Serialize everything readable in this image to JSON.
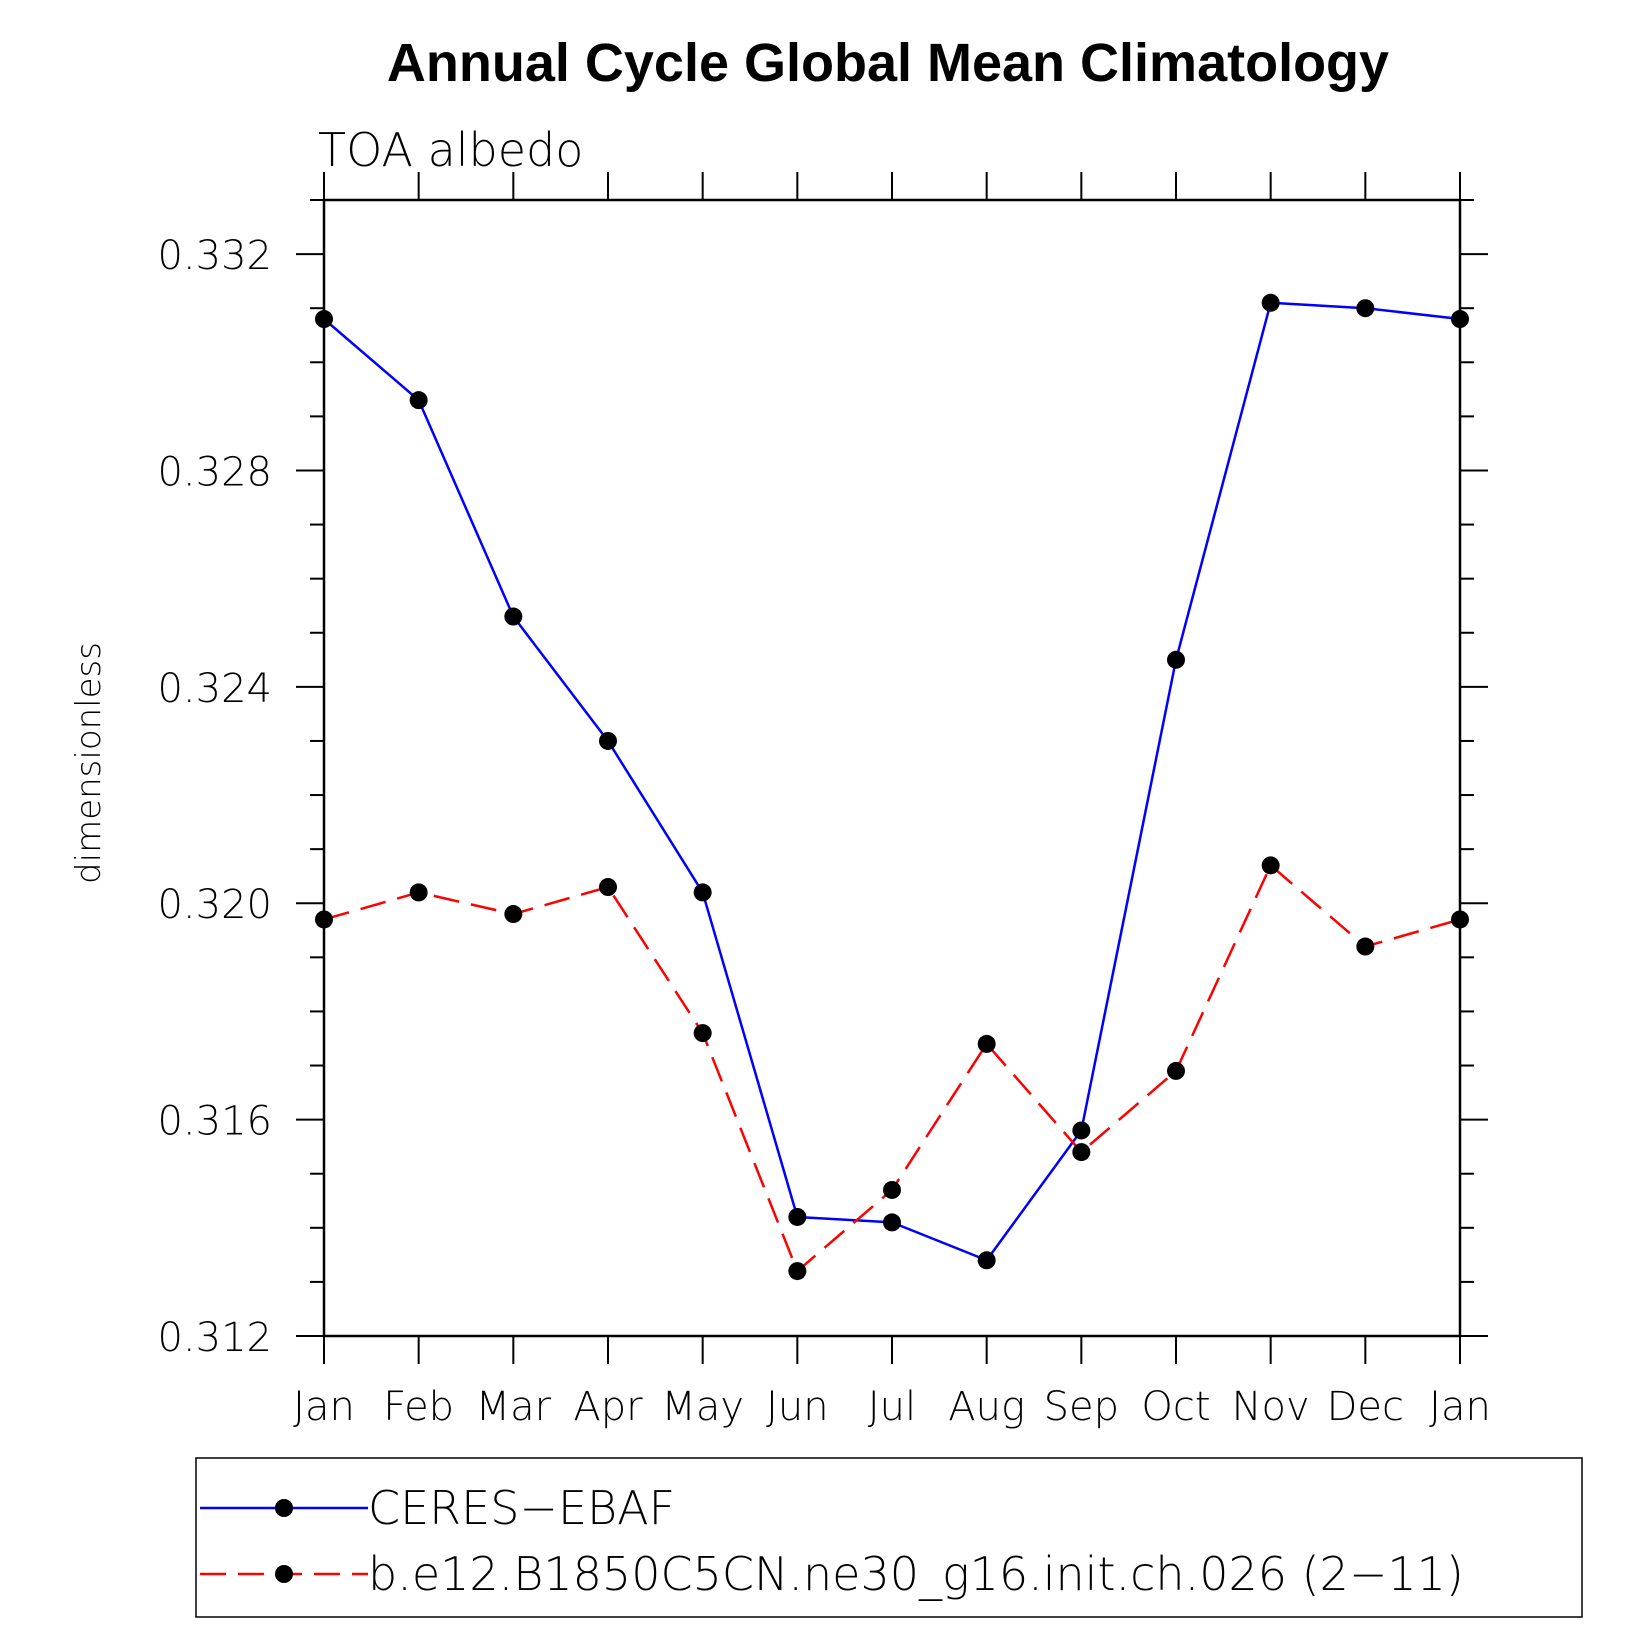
{
  "chart_data": {
    "type": "line",
    "title": "Annual Cycle Global Mean Climatology",
    "subtitle": "TOA albedo",
    "xlabel": "",
    "ylabel": "dimensionless",
    "categories": [
      "Jan",
      "Feb",
      "Mar",
      "Apr",
      "May",
      "Jun",
      "Jul",
      "Aug",
      "Sep",
      "Oct",
      "Nov",
      "Dec",
      "Jan"
    ],
    "ylim": [
      0.312,
      0.333
    ],
    "yticks": [
      0.312,
      0.316,
      0.32,
      0.324,
      0.328,
      0.332
    ],
    "ytick_labels": [
      "0.312",
      "0.316",
      "0.320",
      "0.324",
      "0.328",
      "0.332"
    ],
    "grid": false,
    "legend_position": "bottom",
    "series": [
      {
        "name": "CERES−EBAF",
        "color": "#0000ff",
        "dash": "solid",
        "marker": "filled-circle",
        "marker_color": "#000000",
        "values": [
          0.3308,
          0.3293,
          0.3253,
          0.323,
          0.3202,
          0.3142,
          0.3141,
          0.3134,
          0.3158,
          0.3245,
          0.3311,
          0.331,
          0.3308
        ]
      },
      {
        "name": "b.e12.B1850C5CN.ne30_g16.init.ch.026 (2−11)",
        "color": "#ff0000",
        "dash": "dashed",
        "marker": "filled-circle",
        "marker_color": "#000000",
        "values": [
          0.3197,
          0.3202,
          0.3198,
          0.3203,
          0.3176,
          0.3132,
          0.3147,
          0.3174,
          0.3154,
          0.3169,
          0.3207,
          0.3192,
          0.3197
        ]
      }
    ]
  }
}
